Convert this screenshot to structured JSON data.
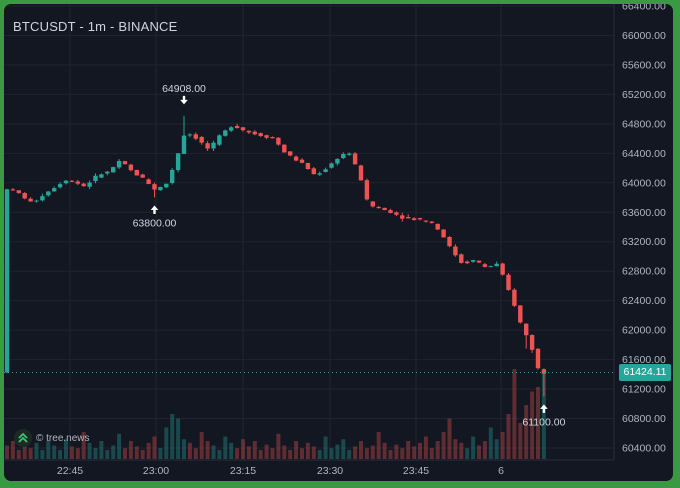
{
  "header": {
    "title": "BTCUSDT - 1m - BINANCE"
  },
  "watermark": {
    "text": "© tree.news"
  },
  "last_price": {
    "label": "61424.11",
    "color": "#26a69a"
  },
  "colors": {
    "up": "#26a69a",
    "down": "#ef5350",
    "background": "#131722",
    "grid": "#1f2430"
  },
  "chart_data": {
    "type": "candlestick",
    "symbol": "BTCUSDT",
    "interval": "1m",
    "exchange": "BINANCE",
    "y_ticks": [
      66400,
      66000,
      65600,
      65200,
      64800,
      64400,
      64000,
      63600,
      63200,
      62800,
      62400,
      62000,
      61600,
      61200,
      60800,
      60400
    ],
    "y_tick_labels": [
      "66400.00",
      "66000.00",
      "65600.00",
      "65200.00",
      "64800.00",
      "64400.00",
      "64000.00",
      "63600.00",
      "63200.00",
      "62800.00",
      "62400.00",
      "62000.00",
      "61600.00",
      "61200.00",
      "60800.00",
      "60400.00"
    ],
    "ylim": [
      60150,
      66450
    ],
    "x_tick_labels": [
      "22:45",
      "23:00",
      "23:15",
      "23:30",
      "23:45",
      "6"
    ],
    "annotations": [
      {
        "label": "64908.00",
        "price": 64908,
        "direction": "down"
      },
      {
        "label": "63800.00",
        "price": 63800,
        "direction": "up"
      },
      {
        "label": "61100.00",
        "price": 61100,
        "direction": "up"
      }
    ],
    "last_price": 61424.11,
    "close_path": [
      [
        0,
        63950
      ],
      [
        3,
        63850
      ],
      [
        5,
        63720
      ],
      [
        8,
        63900
      ],
      [
        11,
        64050
      ],
      [
        14,
        63950
      ],
      [
        16,
        64100
      ],
      [
        18,
        64150
      ],
      [
        20,
        64300
      ],
      [
        22,
        64150
      ],
      [
        24,
        64050
      ],
      [
        26,
        63900
      ],
      [
        28,
        64000
      ],
      [
        30,
        64450
      ],
      [
        31,
        64700
      ],
      [
        33,
        64600
      ],
      [
        35,
        64450
      ],
      [
        37,
        64650
      ],
      [
        39,
        64780
      ],
      [
        42,
        64680
      ],
      [
        46,
        64600
      ],
      [
        48,
        64400
      ],
      [
        51,
        64250
      ],
      [
        53,
        64100
      ],
      [
        55,
        64200
      ],
      [
        57,
        64350
      ],
      [
        58,
        64400
      ],
      [
        59,
        64400
      ],
      [
        60,
        64200
      ],
      [
        61,
        64000
      ],
      [
        62,
        63700
      ],
      [
        64,
        63650
      ],
      [
        66,
        63600
      ],
      [
        68,
        63520
      ],
      [
        71,
        63500
      ],
      [
        73,
        63450
      ],
      [
        75,
        63250
      ],
      [
        76,
        63100
      ],
      [
        78,
        62900
      ],
      [
        80,
        62950
      ],
      [
        82,
        62850
      ],
      [
        84,
        62900
      ],
      [
        85,
        62700
      ],
      [
        86,
        62500
      ],
      [
        87,
        62300
      ],
      [
        88,
        62050
      ],
      [
        89,
        61900
      ],
      [
        90,
        61700
      ],
      [
        91,
        61424
      ]
    ],
    "volume": {
      "scale": "relative, max = 1.0",
      "values": [
        0.15,
        0.2,
        0.1,
        0.25,
        0.12,
        0.18,
        0.1,
        0.2,
        0.15,
        0.1,
        0.22,
        0.14,
        0.12,
        0.3,
        0.18,
        0.12,
        0.2,
        0.1,
        0.15,
        0.28,
        0.12,
        0.2,
        0.14,
        0.1,
        0.18,
        0.25,
        0.12,
        0.35,
        0.5,
        0.45,
        0.22,
        0.18,
        0.12,
        0.3,
        0.2,
        0.15,
        0.1,
        0.25,
        0.18,
        0.12,
        0.22,
        0.14,
        0.2,
        0.1,
        0.16,
        0.12,
        0.28,
        0.15,
        0.1,
        0.2,
        0.12,
        0.18,
        0.14,
        0.1,
        0.25,
        0.12,
        0.16,
        0.22,
        0.1,
        0.14,
        0.2,
        0.12,
        0.15,
        0.3,
        0.18,
        0.1,
        0.16,
        0.12,
        0.2,
        0.14,
        0.18,
        0.25,
        0.12,
        0.2,
        0.3,
        0.45,
        0.22,
        0.18,
        0.12,
        0.25,
        0.15,
        0.2,
        0.35,
        0.22,
        0.3,
        0.5,
        1.0,
        0.4,
        0.6,
        0.75,
        0.8,
        1.0
      ]
    }
  }
}
